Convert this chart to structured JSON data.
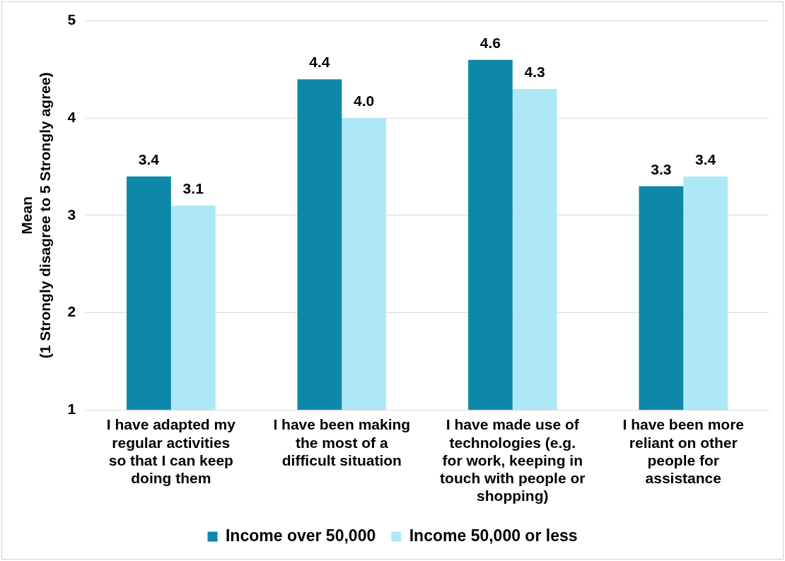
{
  "chart_data": {
    "type": "bar",
    "ylabel": "Mean\n(1 Strongly disagree to 5 Strongly agree)",
    "categories": [
      "I have adapted my regular activities so that I can keep doing them",
      "I have been making the most of a difficult situation",
      "I have made use of technologies (e.g. for work, keeping in touch with people or shopping)",
      "I have been more reliant on other people for assistance"
    ],
    "series": [
      {
        "name": "Income over 50,000",
        "color": "#0e88a8",
        "values": [
          3.4,
          4.4,
          4.6,
          3.3
        ],
        "value_labels": [
          "3.4",
          "4.4",
          "4.6",
          "3.3"
        ]
      },
      {
        "name": "Income 50,000 or less",
        "color": "#aee8f7",
        "values": [
          3.1,
          4.0,
          4.3,
          3.4
        ],
        "value_labels": [
          "3.1",
          "4.0",
          "4.3",
          "3.4"
        ]
      }
    ],
    "ylim": [
      1,
      5
    ],
    "yticks": [
      1,
      2,
      3,
      4,
      5
    ],
    "grid": "y",
    "legend": "bottom"
  }
}
